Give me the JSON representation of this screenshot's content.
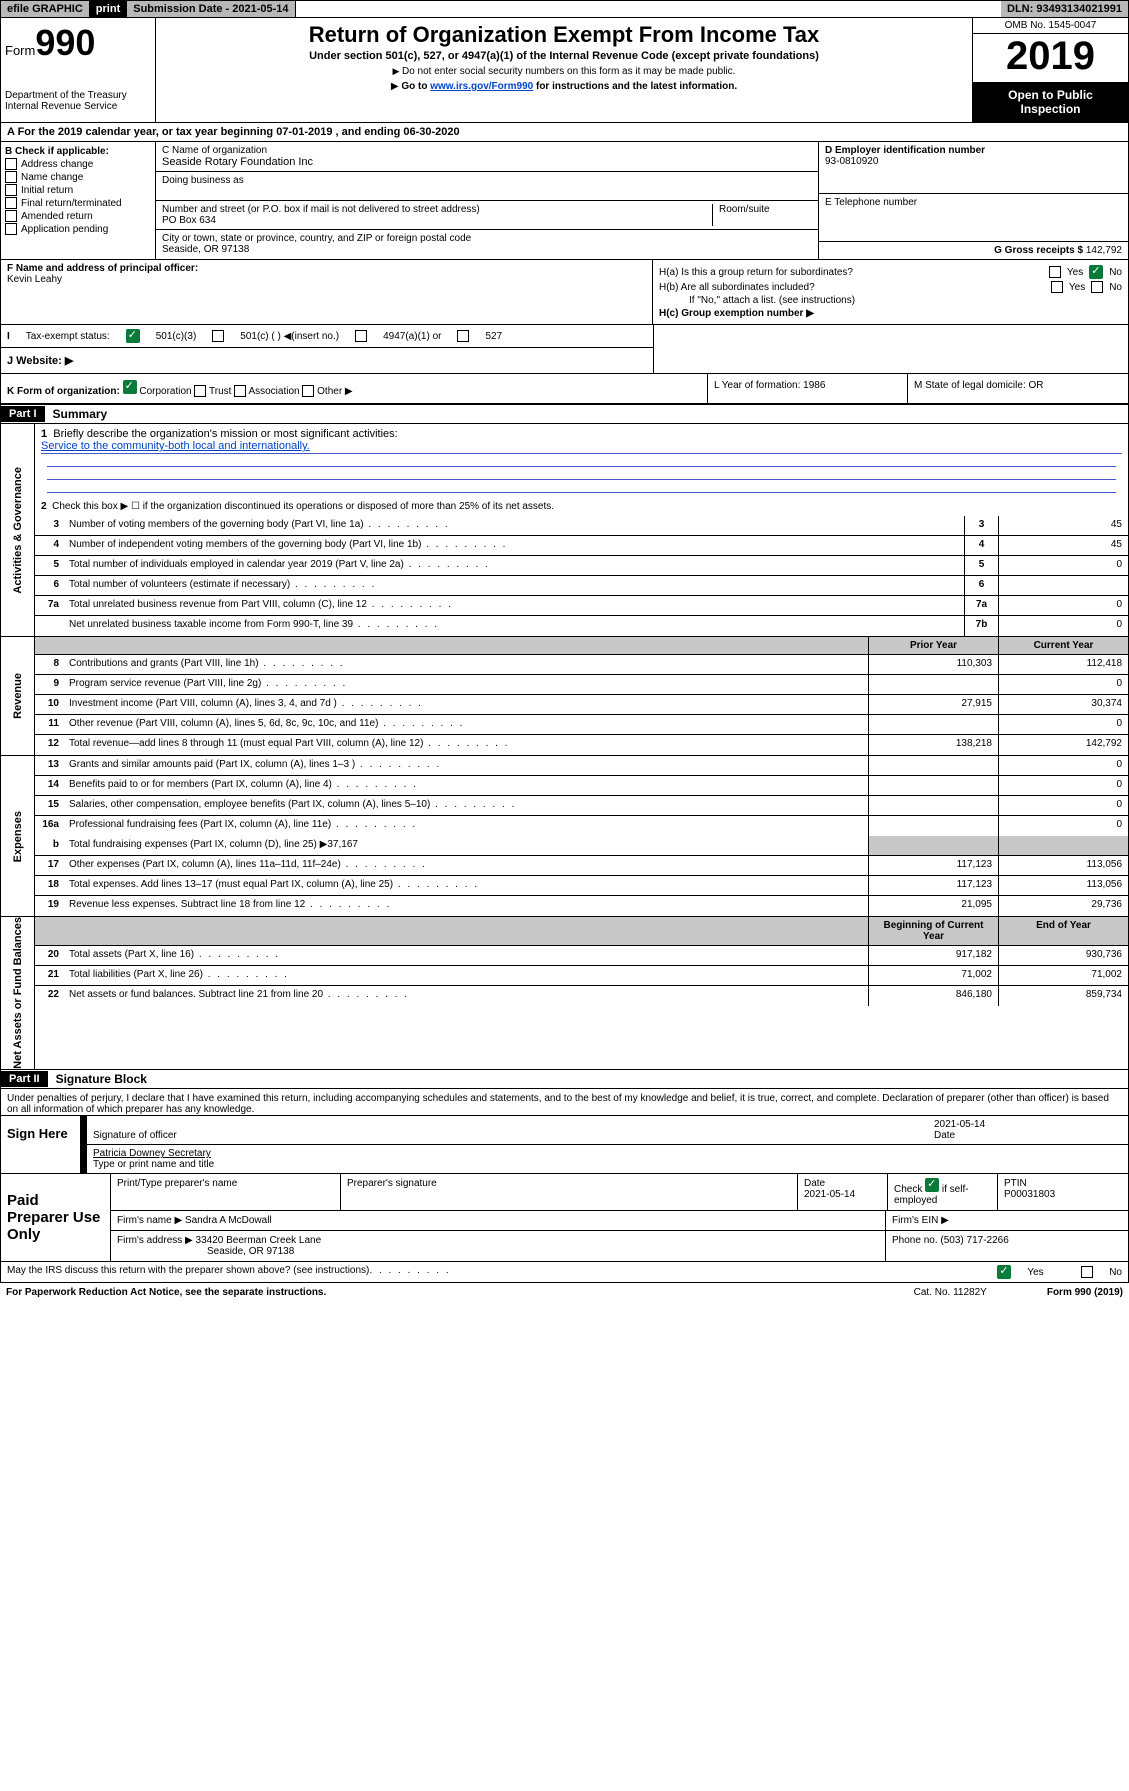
{
  "topbar": {
    "efile": "efile GRAPHIC",
    "print": "print",
    "subdate_label": "Submission Date - 2021-05-14",
    "dln": "DLN: 93493134021991"
  },
  "header": {
    "form_label": "Form",
    "form_num": "990",
    "dept1": "Department of the Treasury",
    "dept2": "Internal Revenue Service",
    "title": "Return of Organization Exempt From Income Tax",
    "subtitle": "Under section 501(c), 527, or 4947(a)(1) of the Internal Revenue Code (except private foundations)",
    "note1": "Do not enter social security numbers on this form as it may be made public.",
    "note2_pre": "Go to ",
    "note2_link": "www.irs.gov/Form990",
    "note2_post": " for instructions and the latest information.",
    "omb": "OMB No. 1545-0047",
    "year": "2019",
    "open": "Open to Public Inspection"
  },
  "period": "A  For the 2019 calendar year, or tax year beginning 07-01-2019     , and ending 06-30-2020",
  "boxB": {
    "label": "B Check if applicable:",
    "items": [
      "Address change",
      "Name change",
      "Initial return",
      "Final return/terminated",
      "Amended return",
      "Application pending"
    ]
  },
  "boxC": {
    "label_name": "C Name of organization",
    "org": "Seaside Rotary Foundation Inc",
    "dba_label": "Doing business as",
    "addr_label": "Number and street (or P.O. box if mail is not delivered to street address)",
    "room_label": "Room/suite",
    "addr": "PO Box 634",
    "city_label": "City or town, state or province, country, and ZIP or foreign postal code",
    "city": "Seaside, OR  97138"
  },
  "boxD": {
    "label": "D Employer identification number",
    "val": "93-0810920"
  },
  "boxE": {
    "label": "E Telephone number"
  },
  "boxG": {
    "label": "G Gross receipts $",
    "val": "142,792"
  },
  "boxF": {
    "label": "F  Name and address of principal officer:",
    "name": "Kevin Leahy"
  },
  "boxH": {
    "a": "H(a)  Is this a group return for subordinates?",
    "b": "H(b)  Are all subordinates included?",
    "b_note": "If \"No,\" attach a list. (see instructions)",
    "c": "H(c)  Group exemption number ▶",
    "yes": "Yes",
    "no": "No"
  },
  "taxstatus": {
    "label": "Tax-exempt status:",
    "o1": "501(c)(3)",
    "o2": "501(c) (  ) ◀(insert no.)",
    "o3": "4947(a)(1) or",
    "o4": "527"
  },
  "website": {
    "label": "J   Website: ▶"
  },
  "korg": {
    "k": "K Form of organization:",
    "corp": "Corporation",
    "trust": "Trust",
    "assoc": "Association",
    "other": "Other ▶",
    "l": "L Year of formation: 1986",
    "m": "M State of legal domicile: OR"
  },
  "part1": {
    "num": "Part I",
    "title": "Summary"
  },
  "gov": {
    "label": "Activities & Governance",
    "l1": "Briefly describe the organization's mission or most significant activities:",
    "mission": "Service to the community-both local and internationally.",
    "l2": "Check this box ▶ ☐  if the organization discontinued its operations or disposed of more than 25% of its net assets.",
    "lines": [
      {
        "n": "3",
        "t": "Number of voting members of the governing body (Part VI, line 1a)",
        "b": "3",
        "v": "45"
      },
      {
        "n": "4",
        "t": "Number of independent voting members of the governing body (Part VI, line 1b)",
        "b": "4",
        "v": "45"
      },
      {
        "n": "5",
        "t": "Total number of individuals employed in calendar year 2019 (Part V, line 2a)",
        "b": "5",
        "v": "0"
      },
      {
        "n": "6",
        "t": "Total number of volunteers (estimate if necessary)",
        "b": "6",
        "v": ""
      },
      {
        "n": "7a",
        "t": "Total unrelated business revenue from Part VIII, column (C), line 12",
        "b": "7a",
        "v": "0"
      },
      {
        "n": "",
        "t": "Net unrelated business taxable income from Form 990-T, line 39",
        "b": "7b",
        "v": "0"
      }
    ]
  },
  "rev": {
    "label": "Revenue",
    "hdr_prior": "Prior Year",
    "hdr_curr": "Current Year",
    "lines": [
      {
        "n": "8",
        "t": "Contributions and grants (Part VIII, line 1h)",
        "p": "110,303",
        "c": "112,418"
      },
      {
        "n": "9",
        "t": "Program service revenue (Part VIII, line 2g)",
        "p": "",
        "c": "0"
      },
      {
        "n": "10",
        "t": "Investment income (Part VIII, column (A), lines 3, 4, and 7d )",
        "p": "27,915",
        "c": "30,374"
      },
      {
        "n": "11",
        "t": "Other revenue (Part VIII, column (A), lines 5, 6d, 8c, 9c, 10c, and 11e)",
        "p": "",
        "c": "0"
      },
      {
        "n": "12",
        "t": "Total revenue—add lines 8 through 11 (must equal Part VIII, column (A), line 12)",
        "p": "138,218",
        "c": "142,792"
      }
    ]
  },
  "exp": {
    "label": "Expenses",
    "lines": [
      {
        "n": "13",
        "t": "Grants and similar amounts paid (Part IX, column (A), lines 1–3 )",
        "p": "",
        "c": "0"
      },
      {
        "n": "14",
        "t": "Benefits paid to or for members (Part IX, column (A), line 4)",
        "p": "",
        "c": "0"
      },
      {
        "n": "15",
        "t": "Salaries, other compensation, employee benefits (Part IX, column (A), lines 5–10)",
        "p": "",
        "c": "0"
      },
      {
        "n": "16a",
        "t": "Professional fundraising fees (Part IX, column (A), line 11e)",
        "p": "",
        "c": "0"
      }
    ],
    "l16b": "Total fundraising expenses (Part IX, column (D), line 25) ▶37,167",
    "lines2": [
      {
        "n": "17",
        "t": "Other expenses (Part IX, column (A), lines 11a–11d, 11f–24e)",
        "p": "117,123",
        "c": "113,056"
      },
      {
        "n": "18",
        "t": "Total expenses. Add lines 13–17 (must equal Part IX, column (A), line 25)",
        "p": "117,123",
        "c": "113,056"
      },
      {
        "n": "19",
        "t": "Revenue less expenses. Subtract line 18 from line 12",
        "p": "21,095",
        "c": "29,736"
      }
    ]
  },
  "net": {
    "label": "Net Assets or Fund Balances",
    "hdr_beg": "Beginning of Current Year",
    "hdr_end": "End of Year",
    "lines": [
      {
        "n": "20",
        "t": "Total assets (Part X, line 16)",
        "p": "917,182",
        "c": "930,736"
      },
      {
        "n": "21",
        "t": "Total liabilities (Part X, line 26)",
        "p": "71,002",
        "c": "71,002"
      },
      {
        "n": "22",
        "t": "Net assets or fund balances. Subtract line 21 from line 20",
        "p": "846,180",
        "c": "859,734"
      }
    ]
  },
  "part2": {
    "num": "Part II",
    "title": "Signature Block"
  },
  "sig": {
    "decl": "Under penalties of perjury, I declare that I have examined this return, including accompanying schedules and statements, and to the best of my knowledge and belief, it is true, correct, and complete. Declaration of preparer (other than officer) is based on all information of which preparer has any knowledge.",
    "sign_here": "Sign Here",
    "sig_officer": "Signature of officer",
    "date_val": "2021-05-14",
    "date": "Date",
    "name": "Patricia Downey  Secretary",
    "name_label": "Type or print name and title"
  },
  "paid": {
    "label": "Paid Preparer Use Only",
    "h1": "Print/Type preparer's name",
    "h2": "Preparer's signature",
    "h3": "Date",
    "h3v": "2021-05-14",
    "h4": "Check ☑ if self-employed",
    "h5": "PTIN",
    "h5v": "P00031803",
    "firm_label": "Firm's name    ▶",
    "firm": "Sandra A McDowall",
    "ein_label": "Firm's EIN ▶",
    "addr_label": "Firm's address ▶",
    "addr1": "33420 Beerman Creek Lane",
    "addr2": "Seaside, OR  97138",
    "phone_label": "Phone no.",
    "phone": "(503) 717-2266"
  },
  "footer": {
    "discuss": "May the IRS discuss this return with the preparer shown above? (see instructions)",
    "yes": "Yes",
    "no": "No",
    "pra": "For Paperwork Reduction Act Notice, see the separate instructions.",
    "cat": "Cat. No. 11282Y",
    "form": "Form 990 (2019)"
  }
}
